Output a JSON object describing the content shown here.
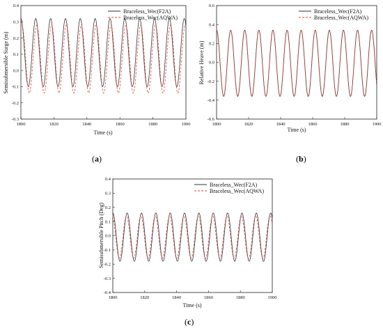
{
  "chart_data": [
    {
      "type": "line",
      "panel_label_open": "(",
      "panel_label_letter": "a",
      "panel_label_close": ")",
      "xlabel": "Time (s)",
      "ylabel": "Semisubmersible Surge (m)",
      "xlim": [
        1800,
        1900
      ],
      "ylim": [
        -0.3,
        0.4
      ],
      "xticks": [
        "1800",
        "1820",
        "1840",
        "1860",
        "1880",
        "1900"
      ],
      "yticks": [
        "-0.3",
        "-0.2",
        "-0.1",
        "0.0",
        "0.1",
        "0.2",
        "0.3",
        "0.4"
      ],
      "legend_position": "top-right",
      "period": 9.0,
      "series": [
        {
          "name": "Braceless_Wec(F2A)",
          "style": "solid",
          "color": "#333333",
          "min": -0.1,
          "max": 0.32,
          "phase": 0
        },
        {
          "name": "Braceless_Wec(AQWA)",
          "style": "dashed",
          "color": "#e8413c",
          "min": -0.14,
          "max": 0.28,
          "phase": 0.6
        }
      ]
    },
    {
      "type": "line",
      "panel_label_open": "(",
      "panel_label_letter": "b",
      "panel_label_close": ")",
      "xlabel": "Time (s)",
      "ylabel": "Relative Heave (m)",
      "xlim": [
        1800,
        1900
      ],
      "ylim": [
        -0.6,
        0.6
      ],
      "xticks": [
        "1800",
        "1820",
        "1840",
        "1860",
        "1880",
        "1900"
      ],
      "yticks": [
        "-0.6",
        "-0.4",
        "-0.2",
        "0.0",
        "0.2",
        "0.4",
        "0.6"
      ],
      "legend_position": "top-right",
      "period": 8.8,
      "series": [
        {
          "name": "Braceless_Wec(F2A)",
          "style": "solid",
          "color": "#333333",
          "min": -0.36,
          "max": 0.34,
          "phase": 0
        },
        {
          "name": "Braceless_Wec(AQWA)",
          "style": "dashed",
          "color": "#e8413c",
          "min": -0.36,
          "max": 0.34,
          "phase": 0.1
        }
      ]
    },
    {
      "type": "line",
      "panel_label_open": "(",
      "panel_label_letter": "c",
      "panel_label_close": ")",
      "xlabel": "Time (s)",
      "ylabel": "Semisubmersible Pitch (Deg)",
      "xlim": [
        1800,
        1900
      ],
      "ylim": [
        -0.4,
        0.4
      ],
      "xticks": [
        "1800",
        "1820",
        "1840",
        "1860",
        "1880",
        "1900"
      ],
      "yticks": [
        "-0.4",
        "-0.3",
        "-0.2",
        "-0.1",
        "0.0",
        "0.1",
        "0.2",
        "0.3",
        "0.4"
      ],
      "legend_position": "top-right",
      "period": 9.0,
      "series": [
        {
          "name": "Braceless_Wec(F2A)",
          "style": "solid",
          "color": "#333333",
          "min": -0.18,
          "max": 0.16,
          "phase": 0
        },
        {
          "name": "Braceless_Wec(AQWA)",
          "style": "dashed",
          "color": "#e8413c",
          "min": -0.16,
          "max": 0.14,
          "phase": -0.4
        }
      ]
    }
  ]
}
